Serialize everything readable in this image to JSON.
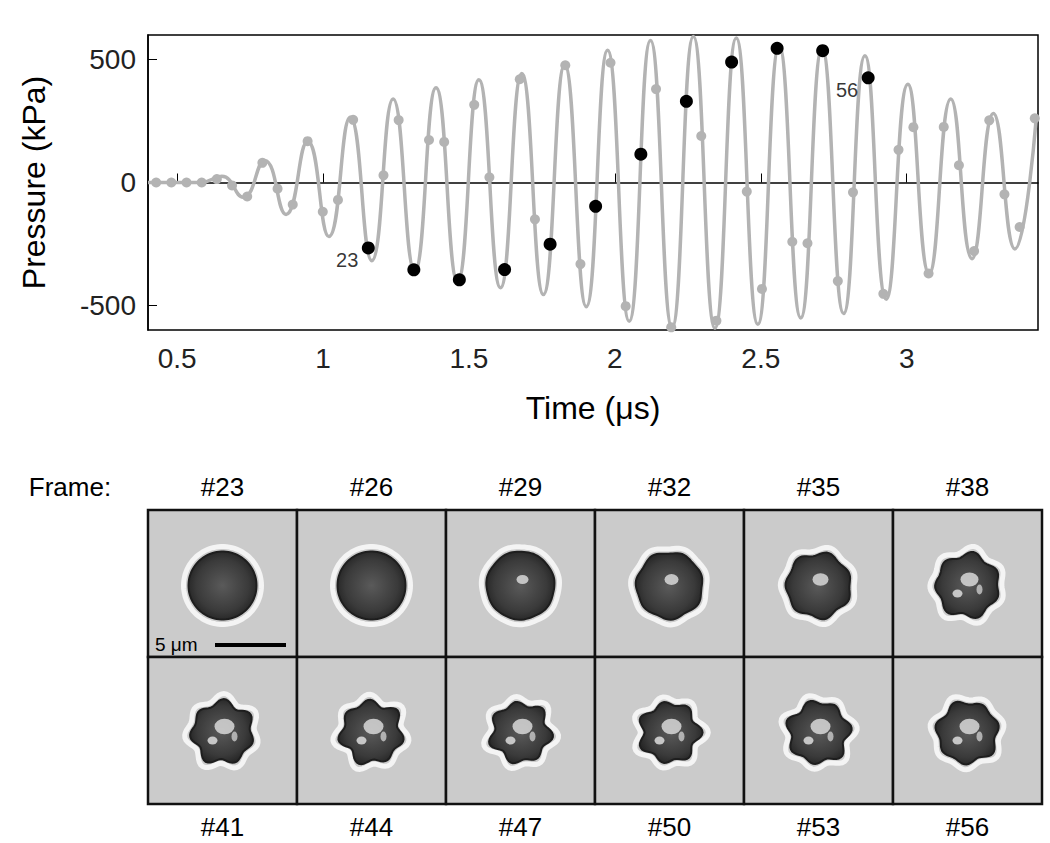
{
  "chart_data": {
    "type": "line",
    "xlabel": "Time (μs)",
    "ylabel": "Pressure (kPa)",
    "xlim": [
      0.4,
      3.45
    ],
    "xticks": [
      0.5,
      1,
      1.5,
      2,
      2.5,
      3
    ],
    "ylim": [
      -600,
      600
    ],
    "yticks": [
      -500,
      0,
      500
    ],
    "grid": false,
    "series": [
      {
        "type": "line",
        "color": "#b3b3b3",
        "line_style": "solid",
        "x": [
          0.4,
          0.5,
          0.58,
          0.653,
          0.726,
          0.8,
          0.873,
          0.947,
          1.02,
          1.093,
          1.167,
          1.24,
          1.314,
          1.387,
          1.461,
          1.534,
          1.608,
          1.681,
          1.755,
          1.828,
          1.902,
          1.975,
          2.049,
          2.122,
          2.196,
          2.269,
          2.343,
          2.416,
          2.49,
          2.563,
          2.637,
          2.71,
          2.784,
          2.857,
          2.93,
          3.004,
          3.077,
          3.151,
          3.224,
          3.297,
          3.371,
          3.444
        ],
        "values": [
          0,
          0,
          0,
          25,
          -60,
          90,
          -130,
          168,
          -220,
          265,
          -318,
          340,
          -361,
          385,
          -403,
          418,
          -428,
          443,
          -456,
          478,
          -505,
          538,
          -564,
          578,
          -590,
          594,
          -593,
          588,
          -577,
          556,
          -551,
          546,
          -533,
          516,
          -475,
          400,
          -370,
          340,
          -310,
          281,
          -270,
          262
        ]
      },
      {
        "type": "scatter",
        "color": "#b3b3b3",
        "marker": "circle",
        "x": [
          0.428,
          0.48,
          0.532,
          0.584,
          0.636,
          0.688,
          0.74,
          0.792,
          0.844,
          0.896,
          0.947,
          0.999,
          1.051,
          1.103,
          1.207,
          1.259,
          1.363,
          1.415,
          1.518,
          1.57,
          1.674,
          1.726,
          1.83,
          1.882,
          1.985,
          2.037,
          2.141,
          2.193,
          2.296,
          2.348,
          2.452,
          2.504,
          2.608,
          2.66,
          2.764,
          2.816,
          2.92,
          2.972,
          3.023,
          3.075,
          3.127,
          3.179,
          3.231,
          3.283,
          3.335,
          3.387,
          3.439
        ],
        "values": [
          0,
          0,
          0,
          0,
          14,
          -12,
          -57,
          80,
          -25,
          -90,
          168,
          -119,
          -71,
          255,
          29,
          254,
          173,
          165,
          316,
          21,
          420,
          -150,
          477,
          -332,
          487,
          -503,
          380,
          -589,
          189,
          -562,
          -37,
          -433,
          -241,
          -247,
          -401,
          -40,
          -453,
          133,
          225,
          -370,
          226,
          70,
          -279,
          253,
          -48,
          -181,
          261
        ]
      },
      {
        "type": "scatter",
        "color": "#000000",
        "marker": "circle",
        "x": [
          1.155,
          1.311,
          1.467,
          1.622,
          1.778,
          1.934,
          2.089,
          2.245,
          2.4,
          2.556,
          2.712,
          2.868
        ],
        "values": [
          -266,
          -355,
          -396,
          -354,
          -251,
          -97,
          115,
          330,
          490,
          546,
          536,
          426
        ]
      }
    ],
    "annotations": [
      {
        "text": "23",
        "x": 1.155,
        "y": -266
      },
      {
        "text": "56",
        "x": 2.868,
        "y": 426
      }
    ]
  },
  "frames": {
    "title": "Frame:",
    "labels": [
      "#23",
      "#26",
      "#29",
      "#32",
      "#35",
      "#38",
      "#41",
      "#44",
      "#47",
      "#50",
      "#53",
      "#56"
    ],
    "scale_bar": "5 μm"
  }
}
